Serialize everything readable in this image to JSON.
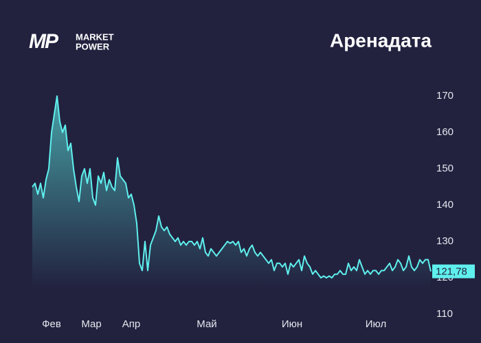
{
  "chart_data": {
    "type": "area",
    "title": "Аренадата",
    "logo": {
      "mark": "MP",
      "line1": "MARKET",
      "line2": "POWER"
    },
    "values": [
      145,
      146,
      143,
      146,
      142,
      147,
      150,
      160,
      165,
      170,
      163,
      160,
      162,
      155,
      157,
      150,
      145,
      141,
      148,
      150,
      146,
      150,
      142,
      140,
      148,
      146,
      149,
      144,
      147,
      145,
      144,
      153,
      148,
      147,
      146,
      142,
      143,
      140,
      135,
      124,
      122,
      130,
      122,
      129,
      131,
      133,
      137,
      134,
      133,
      134,
      132,
      131,
      130,
      131,
      129,
      130,
      129,
      130,
      130,
      129,
      130,
      128,
      131,
      127,
      126,
      128,
      127,
      126,
      127,
      128,
      129,
      130,
      129.5,
      130,
      129,
      130,
      127,
      128,
      126,
      128,
      129,
      127,
      126,
      127,
      126,
      125,
      124,
      125,
      122,
      124,
      124,
      123,
      124,
      121,
      124,
      123,
      124,
      125,
      122,
      126,
      124,
      123,
      121,
      122,
      121,
      120,
      120.5,
      120,
      120.5,
      120,
      121,
      121,
      122,
      121,
      121,
      124,
      122,
      123,
      122,
      125,
      123,
      121,
      122,
      121,
      122,
      122,
      121,
      122,
      122,
      123,
      124,
      122,
      123,
      125,
      124,
      122,
      123,
      126,
      123,
      122,
      123,
      125,
      124,
      125,
      125,
      121.78
    ],
    "xticks": [
      {
        "value": 7,
        "label": "Фев"
      },
      {
        "value": 21.5,
        "label": "Мар"
      },
      {
        "value": 36,
        "label": "Апр"
      },
      {
        "value": 63.5,
        "label": "Май"
      },
      {
        "value": 94.5,
        "label": "Июн"
      },
      {
        "value": 125,
        "label": "Июл"
      }
    ],
    "xlim": [
      0,
      145
    ],
    "ylim": [
      110,
      170
    ],
    "yticks": [
      110,
      120,
      130,
      140,
      150,
      160,
      170
    ],
    "current": {
      "value": 121.78,
      "label": "121,78"
    },
    "color": "#5ff0ee",
    "grid": false
  }
}
